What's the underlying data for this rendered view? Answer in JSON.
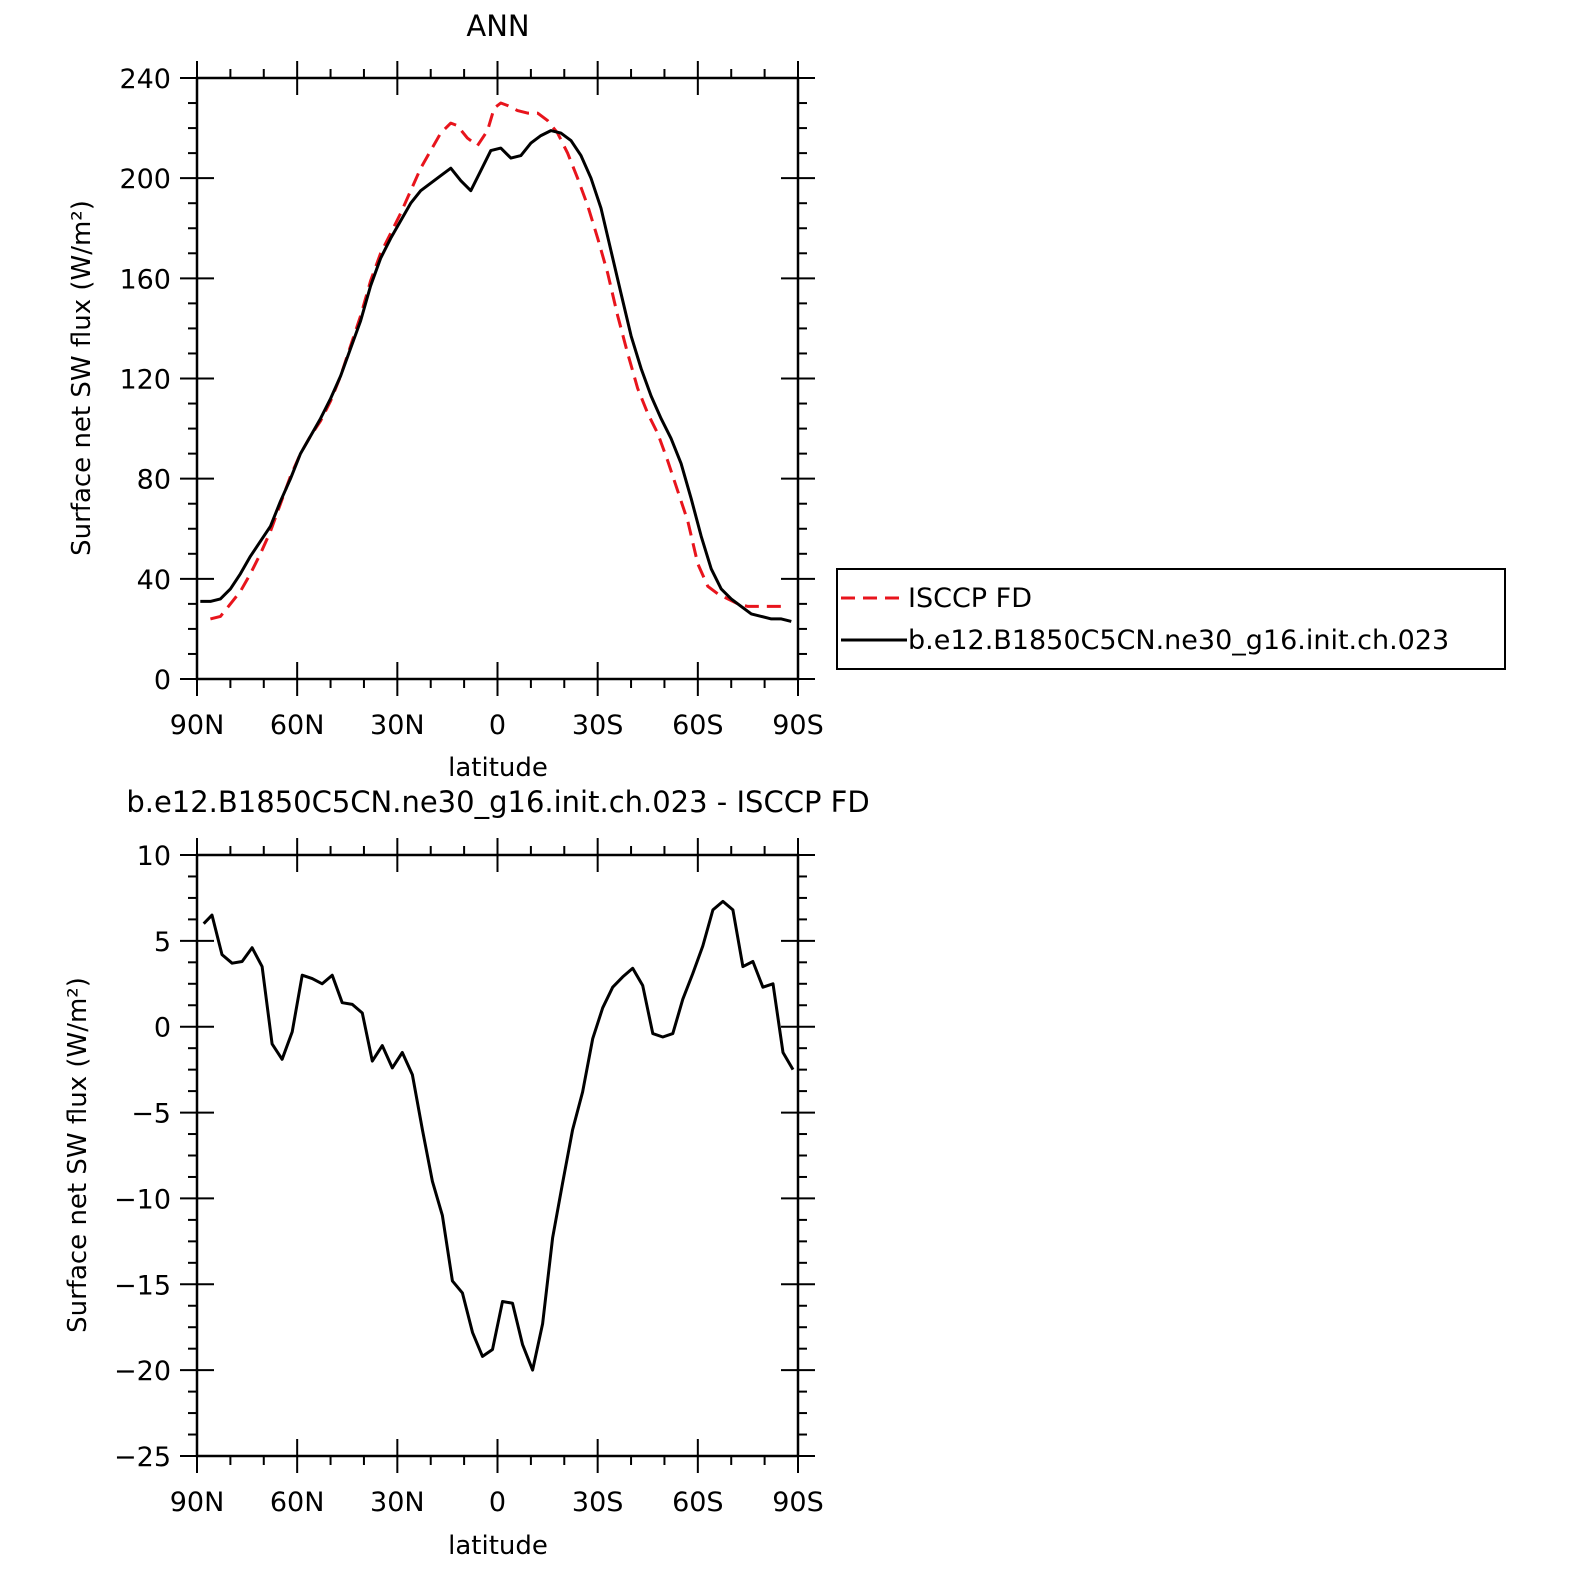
{
  "chart_data": [
    {
      "type": "line",
      "title": "ANN",
      "xlabel": "latitude",
      "ylabel": "Surface net SW flux (W/m²)",
      "xlim": [
        90,
        -90
      ],
      "ylim": [
        0,
        240
      ],
      "y_ticks": [
        0,
        40,
        80,
        120,
        160,
        200,
        240
      ],
      "x_ticks": [
        {
          "value": 90,
          "label": "90N"
        },
        {
          "value": 60,
          "label": "60N"
        },
        {
          "value": 30,
          "label": "30N"
        },
        {
          "value": 0,
          "label": "0"
        },
        {
          "value": -30,
          "label": "30S"
        },
        {
          "value": -60,
          "label": "60S"
        },
        {
          "value": -90,
          "label": "90S"
        }
      ],
      "grid": false,
      "legend": "right",
      "series": [
        {
          "name": "ISCCP FD",
          "color": "#e8141c",
          "dash": "dashed",
          "x": [
            86,
            83,
            80,
            77,
            74,
            71,
            68,
            65,
            62,
            59,
            56,
            53,
            50,
            47,
            44,
            41,
            38,
            35,
            32,
            29,
            26,
            23,
            20,
            17,
            14,
            12,
            9,
            6,
            3,
            1,
            -1,
            -3,
            -6,
            -9,
            -12,
            -15,
            -18,
            -21,
            -24,
            -27,
            -30,
            -33,
            -36,
            -39,
            -42,
            -45,
            -48,
            -51,
            -54,
            -57,
            -60,
            -63,
            -66,
            -69,
            -72,
            -75,
            -78,
            -81,
            -84,
            -87
          ],
          "y": [
            24,
            25,
            30,
            35,
            42,
            50,
            59,
            70,
            81,
            90,
            97,
            103,
            111,
            121,
            133,
            145,
            159,
            170,
            178,
            186,
            195,
            204,
            211,
            218,
            222,
            221,
            216,
            213,
            219,
            228,
            230,
            229,
            227,
            226,
            226,
            223,
            218,
            210,
            200,
            189,
            176,
            162,
            145,
            130,
            116,
            106,
            98,
            87,
            75,
            63,
            46,
            37,
            34,
            32,
            30,
            29,
            29,
            29,
            29,
            29
          ]
        },
        {
          "name": "b.e12.B1850C5CN.ne30_g16.init.ch.023",
          "color": "#000000",
          "dash": "solid",
          "x": [
            89,
            86,
            83,
            80,
            77,
            74,
            71,
            68,
            65,
            62,
            59,
            56,
            53,
            50,
            47,
            44,
            41,
            38,
            35,
            32,
            29,
            26,
            23,
            20,
            17,
            14,
            11,
            8,
            5,
            2,
            -1,
            -4,
            -7,
            -10,
            -13,
            -16,
            -19,
            -22,
            -25,
            -28,
            -31,
            -34,
            -37,
            -40,
            -43,
            -46,
            -49,
            -52,
            -55,
            -58,
            -61,
            -64,
            -67,
            -70,
            -73,
            -76,
            -79,
            -82,
            -85,
            -88
          ],
          "y": [
            31,
            31,
            32,
            36,
            42,
            49,
            55,
            61,
            71,
            80,
            90,
            97,
            104,
            112,
            121,
            132,
            143,
            157,
            168,
            176,
            183,
            190,
            195,
            198,
            201,
            204,
            199,
            195,
            203,
            211,
            212,
            208,
            209,
            214,
            217,
            219,
            218,
            215,
            209,
            200,
            188,
            171,
            154,
            137,
            124,
            113,
            104,
            96,
            86,
            72,
            57,
            44,
            36,
            32,
            29,
            26,
            25,
            24,
            24,
            23
          ]
        }
      ]
    },
    {
      "type": "line",
      "title": "b.e12.B1850C5CN.ne30_g16.init.ch.023 - ISCCP FD",
      "xlabel": "latitude",
      "ylabel": "Surface net SW flux (W/m²)",
      "xlim": [
        90,
        -90
      ],
      "ylim": [
        -25,
        10
      ],
      "y_ticks": [
        -25,
        -20,
        -15,
        -10,
        -5,
        0,
        5,
        10
      ],
      "x_ticks": [
        {
          "value": 90,
          "label": "90N"
        },
        {
          "value": 60,
          "label": "60N"
        },
        {
          "value": 30,
          "label": "30N"
        },
        {
          "value": 0,
          "label": "0"
        },
        {
          "value": -30,
          "label": "30S"
        },
        {
          "value": -60,
          "label": "60S"
        },
        {
          "value": -90,
          "label": "90S"
        }
      ],
      "grid": false,
      "series": [
        {
          "color": "#000000",
          "dash": "solid",
          "x": [
            88,
            85.5,
            82.5,
            79.5,
            76.5,
            73.5,
            70.5,
            67.5,
            64.5,
            61.5,
            58.5,
            55.5,
            52.5,
            49.5,
            46.5,
            43.5,
            40.5,
            37.5,
            34.5,
            31.5,
            28.5,
            25.5,
            22.5,
            19.5,
            16.5,
            13.5,
            10.5,
            7.5,
            4.5,
            1.5,
            -1.5,
            -4.5,
            -7.5,
            -10.5,
            -13.5,
            -16.5,
            -19.5,
            -22.5,
            -25.5,
            -28.5,
            -31.5,
            -34.5,
            -37.5,
            -40.5,
            -43.5,
            -46.5,
            -49.5,
            -52.5,
            -55.5,
            -58.5,
            -61.5,
            -64.5,
            -67.5,
            -70.5,
            -73.5,
            -76.5,
            -79.5,
            -82.5,
            -85.5,
            -88.5
          ],
          "y": [
            6.0,
            6.5,
            4.2,
            3.7,
            3.8,
            4.6,
            3.5,
            -1.0,
            -1.9,
            -0.3,
            3.0,
            2.8,
            2.5,
            3.0,
            1.4,
            1.3,
            0.8,
            -2.0,
            -1.1,
            -2.4,
            -1.5,
            -2.8,
            -6.0,
            -9.0,
            -11.0,
            -14.8,
            -15.5,
            -17.8,
            -19.2,
            -18.8,
            -16.0,
            -16.1,
            -18.5,
            -20.0,
            -17.3,
            -12.3,
            -9.1,
            -6.0,
            -3.8,
            -0.7,
            1.1,
            2.3,
            2.9,
            3.4,
            2.4,
            -0.4,
            -0.6,
            -0.4,
            1.6,
            3.1,
            4.7,
            6.8,
            7.3,
            6.8,
            3.5,
            3.8,
            2.3,
            2.5,
            -1.5,
            -2.5
          ]
        }
      ]
    }
  ]
}
